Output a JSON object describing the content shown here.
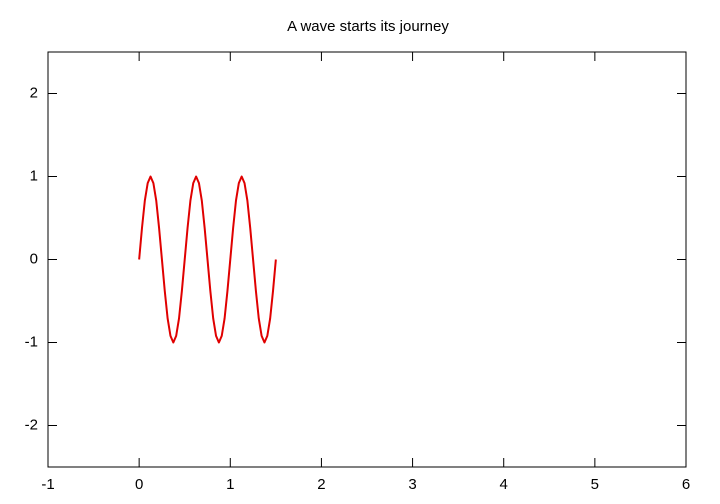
{
  "chart_data": {
    "type": "line",
    "title": "A wave starts its journey",
    "xlim": [
      -1,
      6
    ],
    "ylim": [
      -2.5,
      2.5
    ],
    "xticks": [
      -1,
      0,
      1,
      2,
      3,
      4,
      5,
      6
    ],
    "yticks": [
      -2,
      -1,
      0,
      1,
      2
    ],
    "grid": false,
    "series": [
      {
        "color": "#e00000",
        "x": [
          0,
          0.03125,
          0.0625,
          0.09375,
          0.125,
          0.15625,
          0.1875,
          0.21875,
          0.25,
          0.28125,
          0.3125,
          0.34375,
          0.375,
          0.40625,
          0.4375,
          0.46875,
          0.5,
          0.53125,
          0.5625,
          0.59375,
          0.625,
          0.65625,
          0.6875,
          0.71875,
          0.75,
          0.78125,
          0.8125,
          0.84375,
          0.875,
          0.90625,
          0.9375,
          0.96875,
          1,
          1.03125,
          1.0625,
          1.09375,
          1.125,
          1.15625,
          1.1875,
          1.21875,
          1.25,
          1.28125,
          1.3125,
          1.34375,
          1.375,
          1.40625,
          1.4375,
          1.46875,
          1.5
        ],
        "values": [
          0,
          0.38,
          0.71,
          0.92,
          1,
          0.92,
          0.71,
          0.38,
          0,
          -0.38,
          -0.71,
          -0.92,
          -1,
          -0.92,
          -0.71,
          -0.38,
          0,
          0.38,
          0.71,
          0.92,
          1,
          0.92,
          0.71,
          0.38,
          0,
          -0.38,
          -0.71,
          -0.92,
          -1,
          -0.92,
          -0.71,
          -0.38,
          0,
          0.38,
          0.71,
          0.92,
          1,
          0.92,
          0.71,
          0.38,
          0,
          -0.38,
          -0.71,
          -0.92,
          -1,
          -0.92,
          -0.71,
          -0.38,
          0
        ]
      }
    ]
  }
}
